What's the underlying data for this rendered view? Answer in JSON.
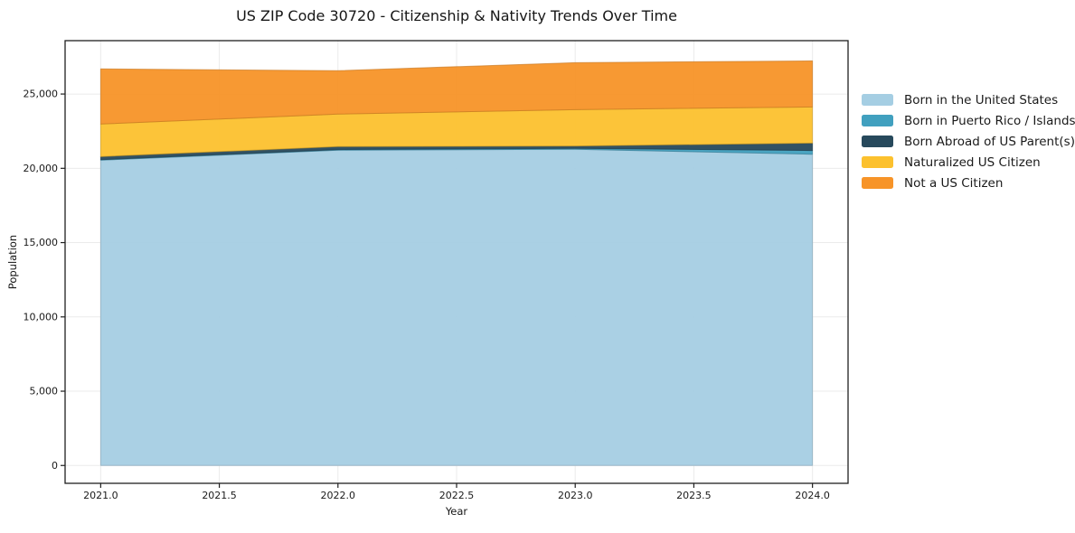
{
  "chart_data": {
    "type": "area",
    "stacked": true,
    "title": "US ZIP Code 30720 - Citizenship & Nativity Trends Over Time",
    "xlabel": "Year",
    "ylabel": "Population",
    "x": [
      2021,
      2022,
      2023,
      2024
    ],
    "series": [
      {
        "name": "Born in the United States",
        "color": "#a5cee3",
        "values": [
          20550,
          21220,
          21280,
          20950
        ]
      },
      {
        "name": "Born in Puerto Rico / Islands",
        "color": "#41a0bf",
        "values": [
          30,
          40,
          60,
          250
        ]
      },
      {
        "name": "Born Abroad of US Parent(s)",
        "color": "#27495c",
        "values": [
          210,
          200,
          160,
          500
        ]
      },
      {
        "name": "Naturalized US Citizen",
        "color": "#fcc12e",
        "values": [
          2190,
          2190,
          2450,
          2430
        ]
      },
      {
        "name": "Not a US Citizen",
        "color": "#f79428",
        "values": [
          3710,
          2920,
          3160,
          3100
        ]
      }
    ],
    "xlim": [
      2020.85,
      2024.15
    ],
    "ylim": [
      -1200,
      28592
    ],
    "x_ticks": {
      "values": [
        2021,
        2021.5,
        2022,
        2022.5,
        2023,
        2023.5,
        2024
      ],
      "labels": [
        "2021.0",
        "2021.5",
        "2022.0",
        "2022.5",
        "2023.0",
        "2023.5",
        "2024.0"
      ]
    },
    "y_ticks": {
      "values": [
        0,
        5000,
        10000,
        15000,
        20000,
        25000
      ],
      "labels": [
        "0",
        "5,000",
        "10,000",
        "15,000",
        "20,000",
        "25,000"
      ]
    },
    "grid": true,
    "legend_position": "right-outside",
    "colors": {
      "grid": "#ebebeb",
      "spine": "#1f1f1f",
      "background": "#ffffff"
    }
  }
}
